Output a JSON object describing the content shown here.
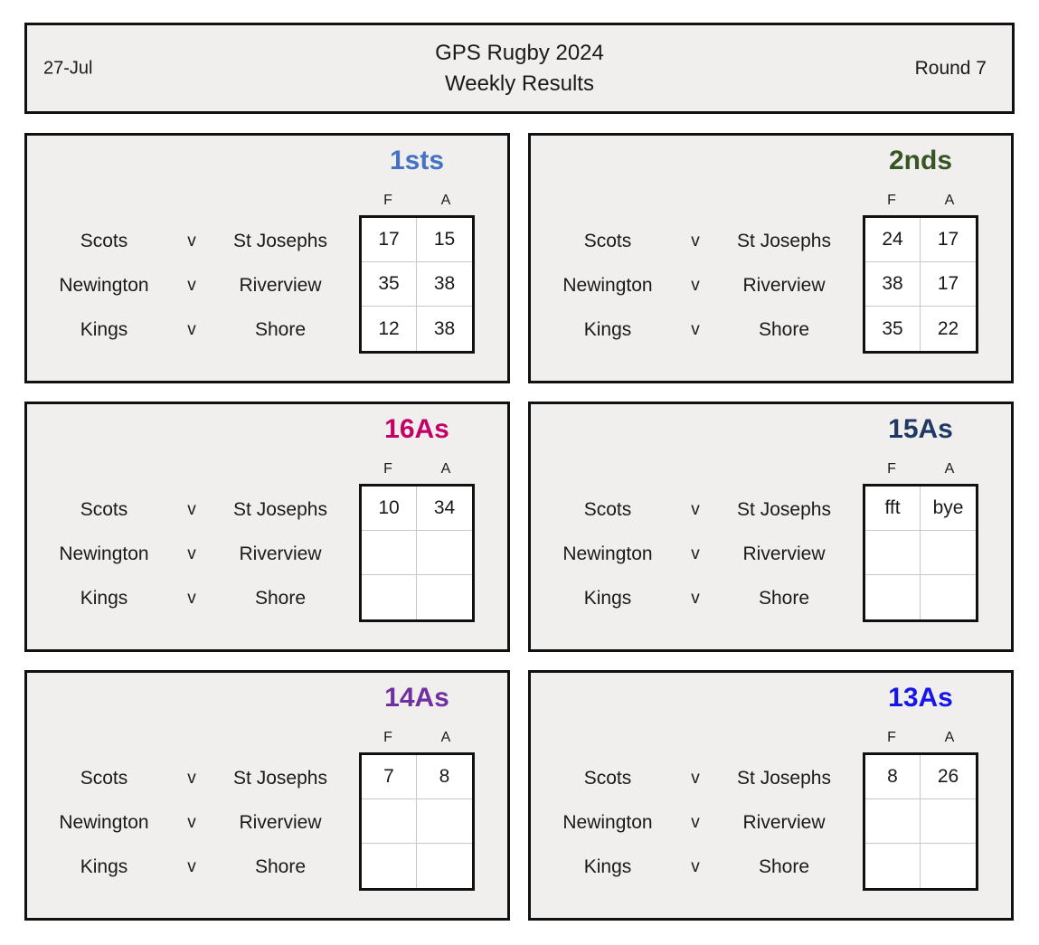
{
  "header": {
    "date": "27-Jul",
    "title_line1": "GPS Rugby 2024",
    "title_line2": "Weekly Results",
    "round": "Round 7"
  },
  "score_columns": [
    "F",
    "A"
  ],
  "versus_label": "v",
  "colors": {
    "panel_bg": "#f0efed",
    "border": "#111111",
    "grid_line": "#c9c8c6",
    "cell_bg": "#ffffff"
  },
  "panels": [
    {
      "grade": "1sts",
      "color": "#4472C4",
      "matches": [
        {
          "home": "Scots",
          "away": "St Josephs",
          "f": "17",
          "a": "15"
        },
        {
          "home": "Newington",
          "away": "Riverview",
          "f": "35",
          "a": "38"
        },
        {
          "home": "Kings",
          "away": "Shore",
          "f": "12",
          "a": "38"
        }
      ]
    },
    {
      "grade": "2nds",
      "color": "#375623",
      "matches": [
        {
          "home": "Scots",
          "away": "St Josephs",
          "f": "24",
          "a": "17"
        },
        {
          "home": "Newington",
          "away": "Riverview",
          "f": "38",
          "a": "17"
        },
        {
          "home": "Kings",
          "away": "Shore",
          "f": "35",
          "a": "22"
        }
      ]
    },
    {
      "grade": "16As",
      "color": "#C40066",
      "matches": [
        {
          "home": "Scots",
          "away": "St Josephs",
          "f": "10",
          "a": "34"
        },
        {
          "home": "Newington",
          "away": "Riverview",
          "f": "",
          "a": ""
        },
        {
          "home": "Kings",
          "away": "Shore",
          "f": "",
          "a": ""
        }
      ]
    },
    {
      "grade": "15As",
      "color": "#1F3864",
      "matches": [
        {
          "home": "Scots",
          "away": "St Josephs",
          "f": "fft",
          "a": "bye"
        },
        {
          "home": "Newington",
          "away": "Riverview",
          "f": "",
          "a": ""
        },
        {
          "home": "Kings",
          "away": "Shore",
          "f": "",
          "a": ""
        }
      ]
    },
    {
      "grade": "14As",
      "color": "#7030A0",
      "matches": [
        {
          "home": "Scots",
          "away": "St Josephs",
          "f": "7",
          "a": "8"
        },
        {
          "home": "Newington",
          "away": "Riverview",
          "f": "",
          "a": ""
        },
        {
          "home": "Kings",
          "away": "Shore",
          "f": "",
          "a": ""
        }
      ]
    },
    {
      "grade": "13As",
      "color": "#1616EC",
      "matches": [
        {
          "home": "Scots",
          "away": "St Josephs",
          "f": "8",
          "a": "26"
        },
        {
          "home": "Newington",
          "away": "Riverview",
          "f": "",
          "a": ""
        },
        {
          "home": "Kings",
          "away": "Shore",
          "f": "",
          "a": ""
        }
      ]
    }
  ]
}
